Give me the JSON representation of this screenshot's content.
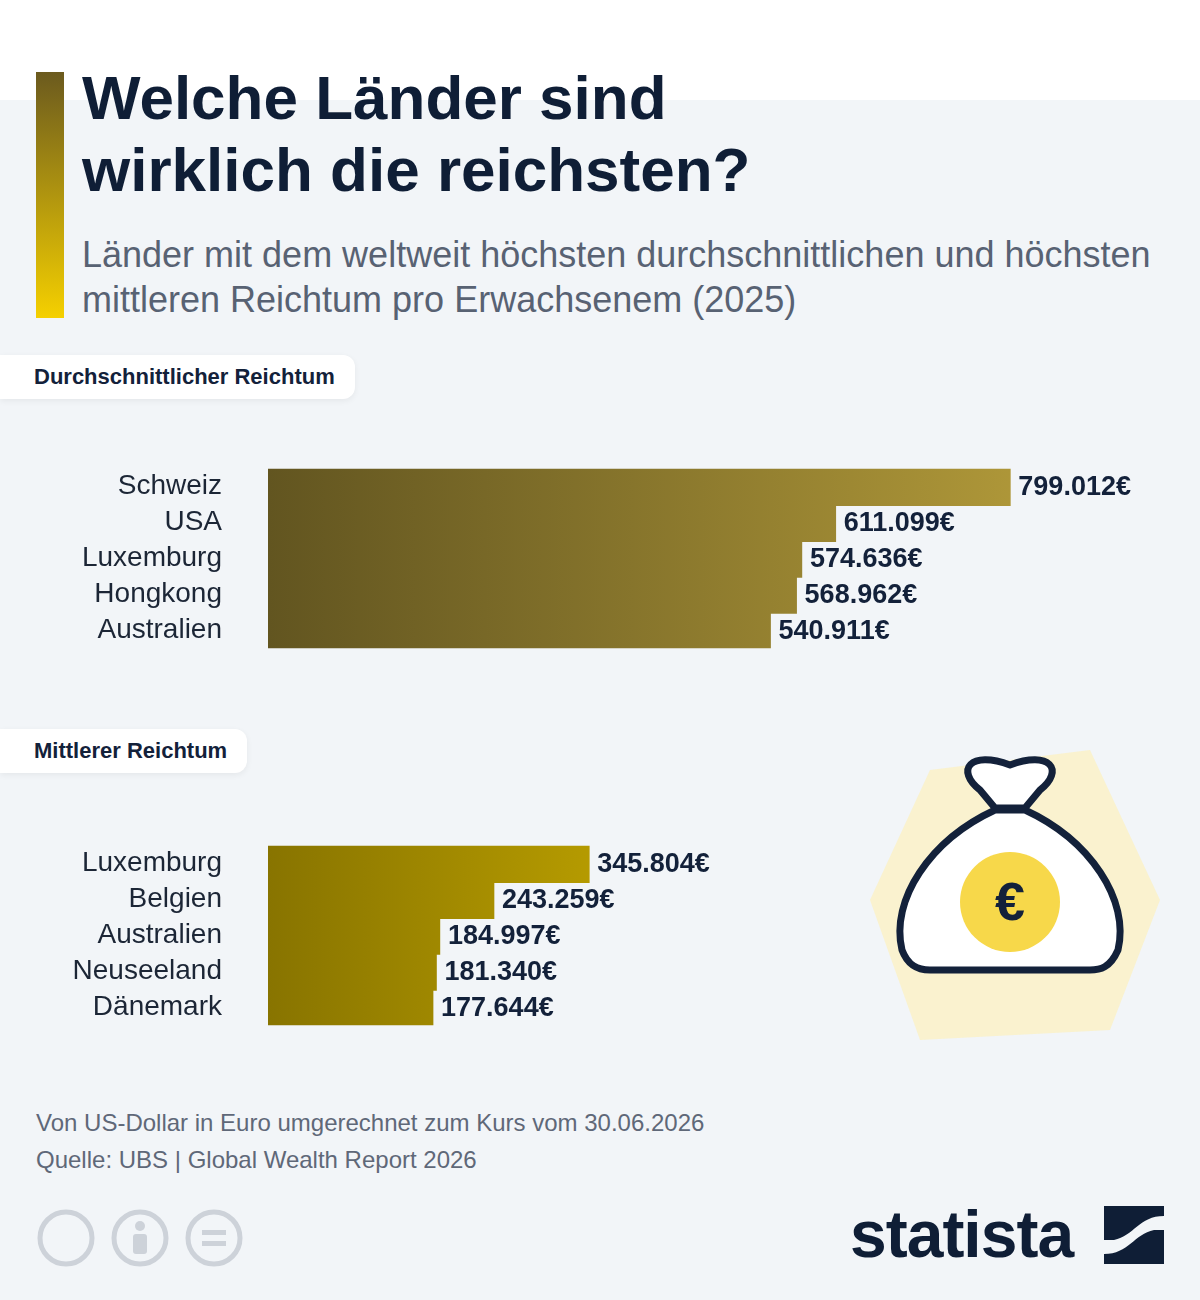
{
  "title": "Welche Länder sind wirklich die reichsten?",
  "subtitle": "Länder mit dem weltweit höchsten durchschnittlichen und höchsten mittleren Reichtum pro Erwachsenem (2025)",
  "chart_data": [
    {
      "type": "bar",
      "title": "Durchschnittlicher Reichtum",
      "orientation": "horizontal",
      "categories": [
        "Schweiz",
        "USA",
        "Luxemburg",
        "Hongkong",
        "Australien"
      ],
      "values": [
        799012,
        611099,
        574636,
        568962,
        540911
      ],
      "value_labels": [
        "799.012€",
        "611.099€",
        "574.636€",
        "568.962€",
        "540.911€"
      ],
      "color": "#b39b3a",
      "xlim": [
        0,
        860000
      ],
      "grid": false,
      "data_labels": true,
      "tick_labels": "y"
    },
    {
      "type": "bar",
      "title": "Mittlerer Reichtum",
      "orientation": "horizontal",
      "categories": [
        "Luxemburg",
        "Belgien",
        "Australien",
        "Neuseeland",
        "Dänemark"
      ],
      "values": [
        345804,
        243259,
        184997,
        181340,
        177644
      ],
      "value_labels": [
        "345.804€",
        "243.259€",
        "184.997€",
        "181.340€",
        "177.644€"
      ],
      "color": "#f7d300",
      "xlim": [
        0,
        860000
      ],
      "grid": false,
      "data_labels": true,
      "tick_labels": "y"
    }
  ],
  "notes": [
    "Von US-Dollar in Euro umgerechnet zum Kurs vom 30.06.2026",
    "Quelle: UBS | Global Wealth Report 2026"
  ],
  "icon": "€",
  "brand": "statista"
}
